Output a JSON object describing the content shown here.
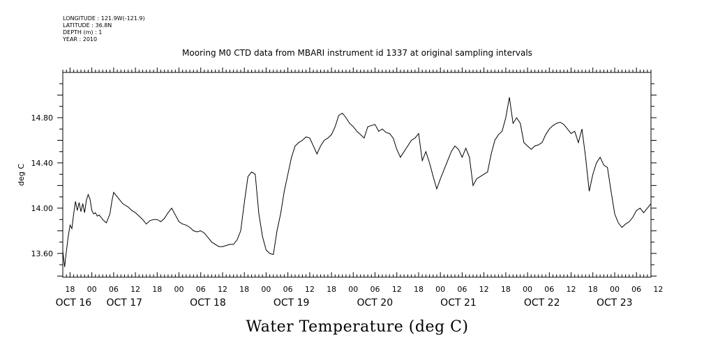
{
  "header": {
    "longitude": "LONGITUDE : 121.9W(-121.9)",
    "latitude": "LATITUDE : 36.8N",
    "depth": "DEPTH (m) : 1",
    "year": "YEAR : 2010"
  },
  "chart_data": {
    "type": "line",
    "title": "Mooring M0 CTD data from MBARI instrument id 1337 at original sampling intervals",
    "xlabel": "Water Temperature (deg C)",
    "ylabel": "deg C",
    "ylim": [
      13.39,
      15.2
    ],
    "y_ticks": [
      "13.60",
      "14.00",
      "14.40",
      "14.80"
    ],
    "xlim_hours": [
      -8,
      154
    ],
    "x_hour_labels": [
      {
        "h": -6,
        "t": "18"
      },
      {
        "h": 0,
        "t": "00"
      },
      {
        "h": 6,
        "t": "06"
      },
      {
        "h": 12,
        "t": "12"
      },
      {
        "h": 18,
        "t": "18"
      },
      {
        "h": 24,
        "t": "00"
      },
      {
        "h": 30,
        "t": "06"
      },
      {
        "h": 36,
        "t": "12"
      },
      {
        "h": 42,
        "t": "18"
      },
      {
        "h": 48,
        "t": "00"
      },
      {
        "h": 54,
        "t": "06"
      },
      {
        "h": 60,
        "t": "12"
      },
      {
        "h": 66,
        "t": "18"
      },
      {
        "h": 72,
        "t": "00"
      },
      {
        "h": 78,
        "t": "06"
      },
      {
        "h": 84,
        "t": "12"
      },
      {
        "h": 90,
        "t": "18"
      },
      {
        "h": 96,
        "t": "00"
      },
      {
        "h": 102,
        "t": "06"
      },
      {
        "h": 108,
        "t": "12"
      },
      {
        "h": 114,
        "t": "18"
      },
      {
        "h": 120,
        "t": "00"
      },
      {
        "h": 126,
        "t": "06"
      },
      {
        "h": 132,
        "t": "12"
      },
      {
        "h": 138,
        "t": "18"
      },
      {
        "h": 144,
        "t": "00"
      },
      {
        "h": 150,
        "t": "06"
      },
      {
        "h": 156,
        "t": "12"
      }
    ],
    "x_day_labels": [
      {
        "h": -10,
        "t": "OCT 16"
      },
      {
        "h": 4,
        "t": "OCT 17"
      },
      {
        "h": 27,
        "t": "OCT 18"
      },
      {
        "h": 50,
        "t": "OCT 19"
      },
      {
        "h": 73,
        "t": "OCT 20"
      },
      {
        "h": 96,
        "t": "OCT 21"
      },
      {
        "h": 119,
        "t": "OCT 22"
      },
      {
        "h": 139,
        "t": "OCT 23"
      }
    ],
    "grid": false,
    "series": [
      {
        "x": [
          -8,
          -7.5,
          -7,
          -6.5,
          -6,
          -5.5,
          -5,
          -4.5,
          -4,
          -3.5,
          -3,
          -2.5,
          -2,
          -1.5,
          -1,
          -0.5,
          0,
          0.5,
          1,
          1.5,
          2,
          3,
          4,
          5,
          5.5,
          6,
          7,
          8,
          8.5,
          9,
          10,
          11,
          12,
          13,
          14,
          15,
          16,
          17,
          18,
          19,
          20,
          21,
          22,
          23,
          24,
          25,
          26,
          27,
          28,
          29,
          30,
          31,
          32,
          33,
          34,
          35,
          36,
          37,
          38,
          39,
          40,
          41,
          42,
          43,
          44,
          45,
          46,
          47,
          48,
          49,
          50,
          51,
          52,
          53,
          54,
          55,
          56,
          57,
          58,
          59,
          60,
          61,
          62,
          63,
          64,
          65,
          66,
          67,
          68,
          69,
          70,
          71,
          72,
          73,
          74,
          75,
          76,
          77,
          78,
          79,
          80,
          81,
          82,
          83,
          84,
          85,
          86,
          87,
          88,
          89,
          90,
          91,
          92,
          93,
          94,
          95,
          96,
          97,
          98,
          99,
          100,
          101,
          102,
          103,
          104,
          105,
          106,
          107,
          108,
          109,
          110,
          111,
          112,
          113,
          114,
          115,
          116,
          117,
          118,
          119,
          120,
          121,
          122,
          123,
          124,
          125,
          126,
          127,
          128,
          129,
          130,
          131,
          132,
          133,
          134,
          135,
          136,
          137,
          138,
          139,
          140,
          141,
          142,
          143,
          144,
          145,
          146,
          147,
          148,
          149,
          150,
          151,
          152,
          153,
          154
        ],
        "values": [
          13.62,
          13.48,
          13.62,
          13.75,
          13.85,
          13.82,
          13.95,
          14.06,
          13.98,
          14.05,
          13.97,
          14.04,
          13.96,
          14.07,
          14.12,
          14.08,
          13.98,
          13.95,
          13.96,
          13.93,
          13.94,
          13.9,
          13.87,
          13.95,
          14.06,
          14.14,
          14.1,
          14.06,
          14.04,
          14.03,
          14.01,
          13.98,
          13.96,
          13.93,
          13.9,
          13.86,
          13.89,
          13.9,
          13.9,
          13.88,
          13.91,
          13.96,
          14.0,
          13.94,
          13.88,
          13.86,
          13.85,
          13.83,
          13.8,
          13.79,
          13.8,
          13.78,
          13.74,
          13.7,
          13.68,
          13.66,
          13.66,
          13.67,
          13.68,
          13.68,
          13.72,
          13.8,
          14.05,
          14.28,
          14.32,
          14.3,
          13.95,
          13.75,
          13.63,
          13.6,
          13.59,
          13.8,
          13.95,
          14.15,
          14.3,
          14.45,
          14.55,
          14.58,
          14.6,
          14.63,
          14.62,
          14.55,
          14.48,
          14.55,
          14.6,
          14.62,
          14.65,
          14.72,
          14.82,
          14.84,
          14.8,
          14.75,
          14.72,
          14.68,
          14.65,
          14.62,
          14.72,
          14.73,
          14.74,
          14.68,
          14.7,
          14.67,
          14.66,
          14.62,
          14.52,
          14.45,
          14.5,
          14.55,
          14.6,
          14.62,
          14.66,
          14.42,
          14.5,
          14.4,
          14.28,
          14.17,
          14.26,
          14.34,
          14.42,
          14.5,
          14.55,
          14.52,
          14.45,
          14.53,
          14.45,
          14.2,
          14.26,
          14.28,
          14.3,
          14.32,
          14.48,
          14.6,
          14.65,
          14.68,
          14.8,
          14.98,
          14.75,
          14.8,
          14.75,
          14.58,
          14.55,
          14.52,
          14.55,
          14.56,
          14.58,
          14.65,
          14.7,
          14.73,
          14.75,
          14.76,
          14.74,
          14.7,
          14.66,
          14.68,
          14.58,
          14.7,
          14.45,
          14.15,
          14.3,
          14.4,
          14.45,
          14.38,
          14.36,
          14.15,
          13.95,
          13.87,
          13.83,
          13.86,
          13.88,
          13.92,
          13.98,
          14.0,
          13.96,
          14.0,
          14.04
        ]
      }
    ]
  }
}
